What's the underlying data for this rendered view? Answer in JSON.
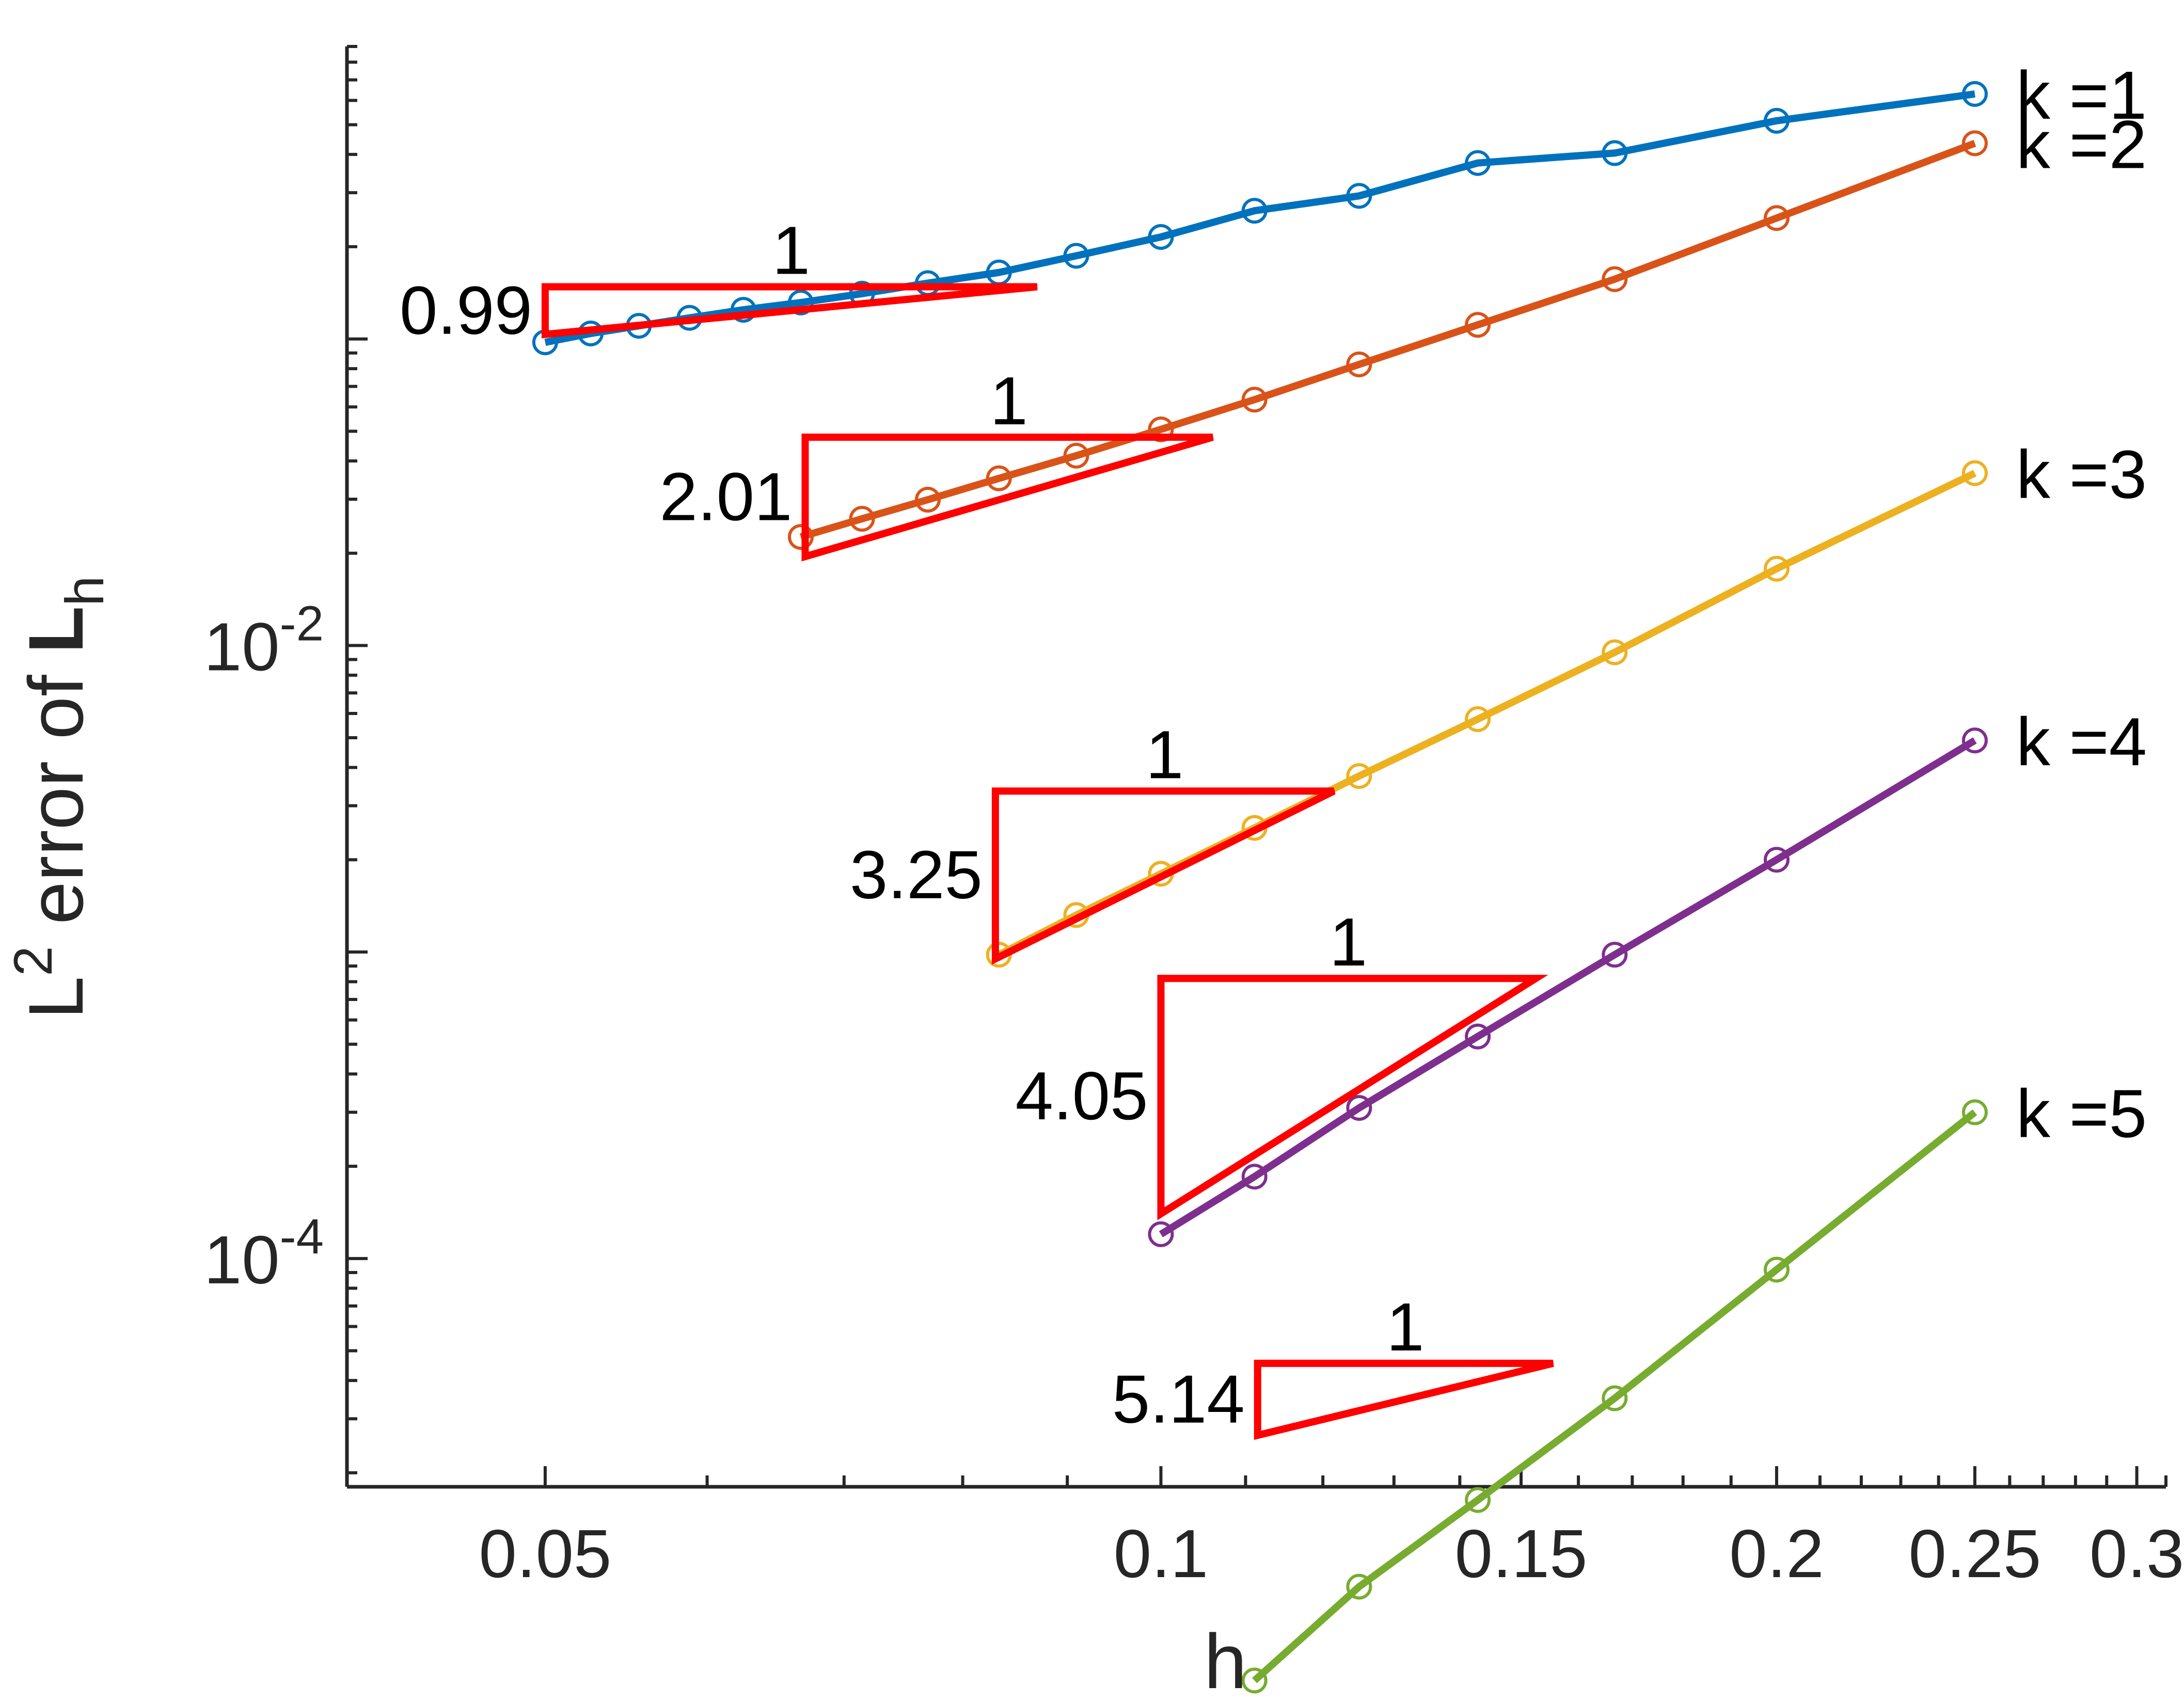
{
  "chart_data": {
    "type": "line",
    "scale": {
      "x": "log",
      "y": "log"
    },
    "xlabel": "h",
    "ylabel": {
      "prefix": "L",
      "sup": "2",
      "middle": " error of ",
      "bold": "L",
      "sub": "h"
    },
    "xlim": [
      0.04,
      0.31
    ],
    "ylim": [
      1.8e-05,
      0.9
    ],
    "xticks": [
      {
        "value": 0.05,
        "label": "0.05"
      },
      {
        "value": 0.1,
        "label": "0.1"
      },
      {
        "value": 0.15,
        "label": "0.15"
      },
      {
        "value": 0.2,
        "label": "0.2"
      },
      {
        "value": 0.25,
        "label": "0.25"
      },
      {
        "value": 0.3,
        "label": "0.3"
      }
    ],
    "yticks": [
      {
        "value": 0.01,
        "base": "10",
        "exp": "-2"
      },
      {
        "value": 0.0001,
        "base": "10",
        "exp": "-4"
      }
    ],
    "series": [
      {
        "name": "k =1",
        "color": "#0072BD",
        "x": [
          0.25,
          0.2,
          0.16667,
          0.14286,
          0.125,
          0.11111,
          0.1,
          0.09091,
          0.08333,
          0.07692,
          0.07143,
          0.06667,
          0.0625,
          0.05882,
          0.05556,
          0.05263,
          0.05
        ],
        "y": [
          0.63,
          0.515,
          0.404,
          0.375,
          0.293,
          0.262,
          0.2152,
          0.1868,
          0.1648,
          0.1521,
          0.1405,
          0.1315,
          0.1245,
          0.1172,
          0.1104,
          0.1042,
          0.0975
        ]
      },
      {
        "name": "k =2",
        "color": "#D95319",
        "x": [
          0.25,
          0.2,
          0.16667,
          0.14286,
          0.125,
          0.11111,
          0.1,
          0.09091,
          0.08333,
          0.07692,
          0.07143,
          0.06667
        ],
        "y": [
          0.435,
          0.248,
          0.1567,
          0.1112,
          0.0826,
          0.0634,
          0.0507,
          0.0416,
          0.0351,
          0.0299,
          0.0259,
          0.0226
        ]
      },
      {
        "name": "k =3",
        "color": "#EDB120",
        "x": [
          0.25,
          0.2,
          0.16667,
          0.14286,
          0.125,
          0.11111,
          0.1,
          0.09091,
          0.08333
        ],
        "y": [
          0.0365,
          0.0178,
          0.0095,
          0.00575,
          0.00375,
          0.00254,
          0.0018,
          0.00132,
          0.00098
        ]
      },
      {
        "name": "k =4",
        "color": "#7E2F8E",
        "x": [
          0.25,
          0.2,
          0.16667,
          0.14286,
          0.125,
          0.11111,
          0.1
        ],
        "y": [
          0.0049,
          0.002,
          0.00098,
          0.00053,
          0.00031,
          0.000185,
          0.00012
        ]
      },
      {
        "name": "k =5",
        "color": "#77AC30",
        "x": [
          0.25,
          0.2,
          0.16667,
          0.14286,
          0.125,
          0.11111
        ],
        "y": [
          0.0003,
          9.2e-05,
          3.5e-05,
          1.63e-05,
          8.5e-06,
          4.2e-06
        ]
      }
    ],
    "slope_triangles": [
      {
        "series": "k =1",
        "rate_label": "0.99",
        "run_label": "1",
        "x0": 0.05,
        "x1": 0.087,
        "y_top": 0.148,
        "y_bottom": 0.1035
      },
      {
        "series": "k =2",
        "rate_label": "2.01",
        "run_label": "1",
        "x0": 0.067,
        "x1": 0.106,
        "y_top": 0.0478,
        "y_bottom": 0.0195
      },
      {
        "series": "k =3",
        "rate_label": "3.25",
        "run_label": "1",
        "x0": 0.083,
        "x1": 0.1215,
        "y_top": 0.00335,
        "y_bottom": 0.00095
      },
      {
        "series": "k =4",
        "rate_label": "4.05",
        "run_label": "1",
        "x0": 0.1,
        "x1": 0.1525,
        "y_top": 0.00082,
        "y_bottom": 0.00014
      },
      {
        "series": "k =5",
        "rate_label": "5.14",
        "run_label": "1",
        "x0": 0.1115,
        "x1": 0.1555,
        "y_top": 4.55e-05,
        "y_bottom": 2.65e-05
      }
    ]
  },
  "colors": {
    "axis": "#262626",
    "triangle": "#FF0000"
  }
}
